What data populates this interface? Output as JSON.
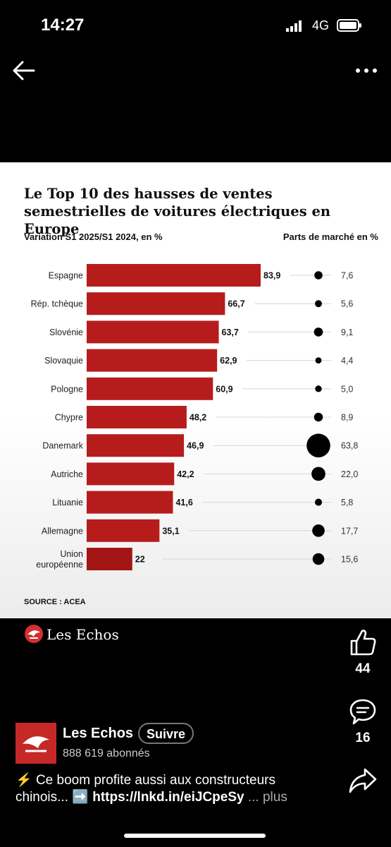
{
  "status_bar": {
    "time": "14:27",
    "network": "4G"
  },
  "post": {
    "brand": "Les Echos",
    "likes": "44",
    "comments": "16",
    "author": {
      "name": "Les Echos",
      "follow_label": "Suivre",
      "followers": "888 619 abonnés"
    },
    "caption": {
      "emoji": "⚡",
      "text1": "Ce boom profite aussi aux constructeurs",
      "text2": "chinois...",
      "arrow": "➡️",
      "link": "https://lnkd.in/eiJCpeSy",
      "more": "... plus"
    }
  },
  "chart_data": {
    "type": "bar",
    "title": "Le Top 10 des hausses de ventes semestrielles de voitures électriques en Europe",
    "subtitle_left": "Variation S1 2025/S1 2024, en %",
    "subtitle_right": "Parts de marché en %",
    "source": "SOURCE : ACEA",
    "categories": [
      "Espagne",
      "Rép. tchèque",
      "Slovénie",
      "Slovaquie",
      "Pologne",
      "Chypre",
      "Danemark",
      "Autriche",
      "Lituanie",
      "Allemagne",
      "Union européenne"
    ],
    "values": [
      83.9,
      66.7,
      63.7,
      62.9,
      60.9,
      48.2,
      46.9,
      42.2,
      41.6,
      35.1,
      22
    ],
    "value_labels": [
      "83,9",
      "66,7",
      "63,7",
      "62,9",
      "60,9",
      "48,2",
      "46,9",
      "42,2",
      "41,6",
      "35,1",
      "22"
    ],
    "market_share": [
      7.6,
      5.6,
      9.1,
      4.4,
      5.0,
      8.9,
      63.8,
      22.0,
      5.8,
      17.7,
      15.6
    ],
    "market_share_labels": [
      "7,6",
      "5,6",
      "9,1",
      "4,4",
      "5,0",
      "8,9",
      "63,8",
      "22,0",
      "5,8",
      "17,7",
      "15,6"
    ],
    "colors": {
      "bar": "#b71c1c",
      "bar_last": "#a31515",
      "dot": "#000000"
    }
  }
}
